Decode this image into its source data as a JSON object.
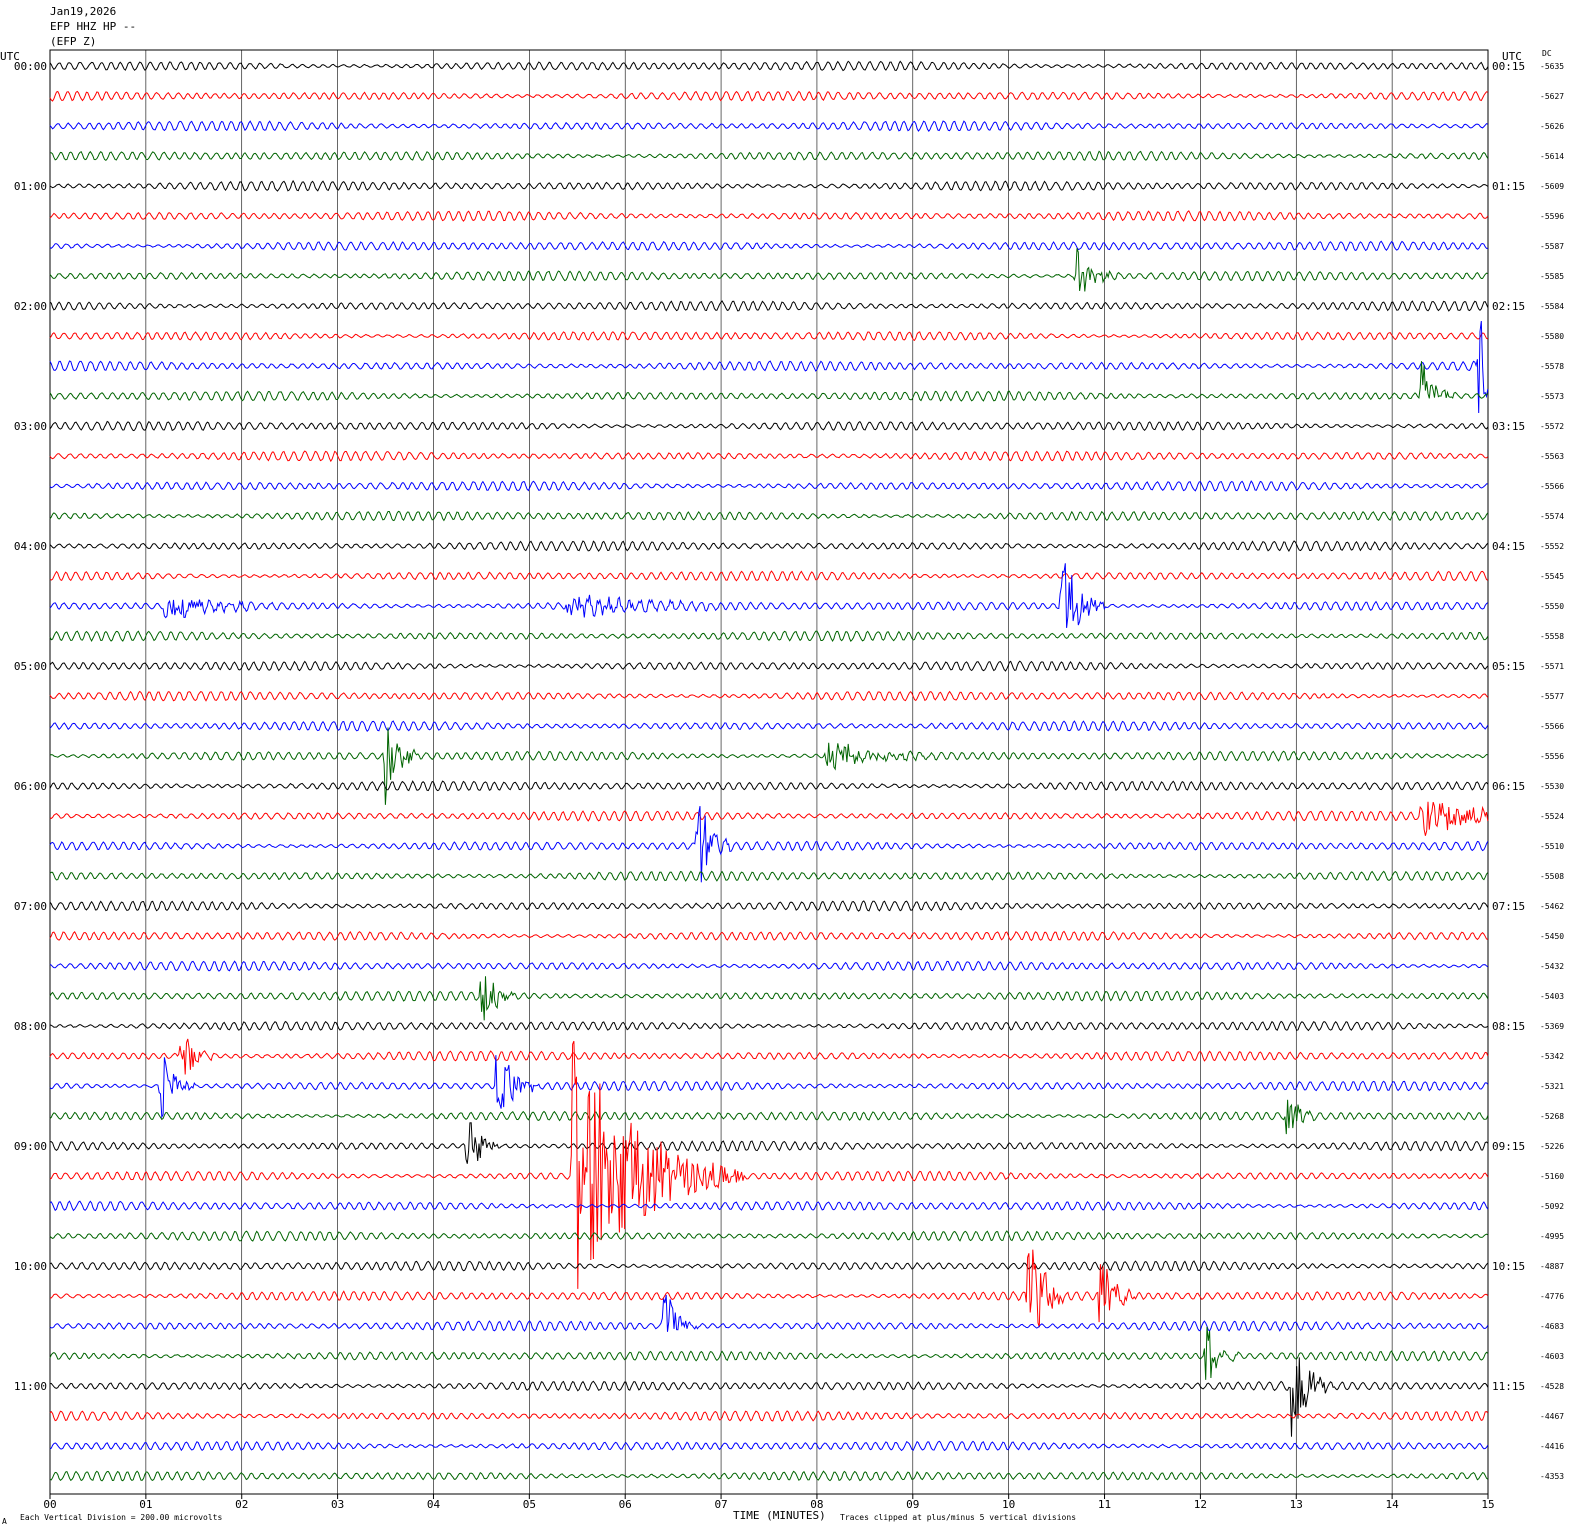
{
  "header": {
    "date": "Jan19,2026",
    "channel": "EFP HHZ HP --",
    "station": "(EFP Z)"
  },
  "axes": {
    "left_label": "UTC",
    "right_label": "UTC",
    "dc_label": "DC",
    "xlabel": "TIME (MINUTES)",
    "x_ticks": [
      "00",
      "01",
      "02",
      "03",
      "04",
      "05",
      "06",
      "07",
      "08",
      "09",
      "10",
      "11",
      "12",
      "13",
      "14",
      "15"
    ]
  },
  "footer": {
    "scale_note": "Each Vertical Division =  200.00 microvolts",
    "clip_note": "Traces clipped at plus/minus 5 vertical divisions",
    "corner_mark": "A"
  },
  "colors": {
    "trace_cycle": [
      "#000000",
      "#ff0000",
      "#0000ff",
      "#006400"
    ],
    "grid": "#000000",
    "background": "#ffffff"
  },
  "chart_data": {
    "type": "line",
    "title": "",
    "xlim": [
      0,
      15
    ],
    "minutes_per_row": 15,
    "row_count": 48,
    "grid_vertical": true,
    "left_time_labels": [
      "00:00",
      "",
      "",
      "",
      "01:00",
      "",
      "",
      "",
      "02:00",
      "",
      "",
      "",
      "03:00",
      "",
      "",
      "",
      "04:00",
      "",
      "",
      "",
      "05:00",
      "",
      "",
      "",
      "06:00",
      "",
      "",
      "",
      "07:00",
      "",
      "",
      "",
      "08:00",
      "",
      "",
      "",
      "09:00",
      "",
      "",
      "",
      "10:00",
      "",
      "",
      "",
      "11:00",
      "",
      "",
      ""
    ],
    "right_time_labels": [
      "00:15",
      "",
      "",
      "",
      "01:15",
      "",
      "",
      "",
      "02:15",
      "",
      "",
      "",
      "03:15",
      "",
      "",
      "",
      "04:15",
      "",
      "",
      "",
      "05:15",
      "",
      "",
      "",
      "06:15",
      "",
      "",
      "",
      "07:15",
      "",
      "",
      "",
      "08:15",
      "",
      "",
      "",
      "09:15",
      "",
      "",
      "",
      "10:15",
      "",
      "",
      "",
      "11:15",
      "",
      "",
      ""
    ],
    "dc_offsets": [
      "-5635",
      "-5627",
      "-5626",
      "-5614",
      "-5609",
      "-5596",
      "-5587",
      "-5585",
      "-5584",
      "-5580",
      "-5578",
      "-5573",
      "-5572",
      "-5563",
      "-5566",
      "-5574",
      "-5552",
      "-5545",
      "-5550",
      "-5558",
      "-5571",
      "-5577",
      "-5566",
      "-5556",
      "-5530",
      "-5524",
      "-5510",
      "-5508",
      "-5462",
      "-5450",
      "-5432",
      "-5403",
      "-5369",
      "-5342",
      "-5321",
      "-5268",
      "-5226",
      "-5160",
      "-5092",
      "-4995",
      "-4887",
      "-4776",
      "-4683",
      "-4603",
      "-4528",
      "-4467",
      "-4416",
      "-4353"
    ],
    "events": [
      {
        "row": 7,
        "minute": 10.7,
        "amp": 1.0,
        "dur": 0.15
      },
      {
        "row": 10,
        "minute": 14.9,
        "amp": 2.0,
        "dur": 0.15
      },
      {
        "row": 11,
        "minute": 14.3,
        "amp": 1.3,
        "dur": 0.12
      },
      {
        "row": 18,
        "minute": 1.2,
        "amp": 0.5,
        "dur": 0.4
      },
      {
        "row": 18,
        "minute": 5.4,
        "amp": 0.4,
        "dur": 0.6
      },
      {
        "row": 18,
        "minute": 10.55,
        "amp": 2.0,
        "dur": 0.15
      },
      {
        "row": 23,
        "minute": 3.5,
        "amp": 1.8,
        "dur": 0.12
      },
      {
        "row": 23,
        "minute": 8.1,
        "amp": 0.6,
        "dur": 0.4
      },
      {
        "row": 25,
        "minute": 14.3,
        "amp": 0.7,
        "dur": 0.6
      },
      {
        "row": 26,
        "minute": 6.75,
        "amp": 2.0,
        "dur": 0.12
      },
      {
        "row": 31,
        "minute": 4.5,
        "amp": 1.2,
        "dur": 0.12
      },
      {
        "row": 33,
        "minute": 1.35,
        "amp": 1.3,
        "dur": 0.12
      },
      {
        "row": 34,
        "minute": 1.15,
        "amp": 1.4,
        "dur": 0.12
      },
      {
        "row": 34,
        "minute": 4.65,
        "amp": 1.7,
        "dur": 0.15
      },
      {
        "row": 35,
        "minute": 12.9,
        "amp": 1.0,
        "dur": 0.1
      },
      {
        "row": 36,
        "minute": 4.35,
        "amp": 1.2,
        "dur": 0.12
      },
      {
        "row": 37,
        "minute": 5.45,
        "amp": 5.0,
        "dur": 0.6
      },
      {
        "row": 41,
        "minute": 10.2,
        "amp": 2.2,
        "dur": 0.15
      },
      {
        "row": 41,
        "minute": 10.95,
        "amp": 1.8,
        "dur": 0.12
      },
      {
        "row": 42,
        "minute": 6.4,
        "amp": 1.6,
        "dur": 0.12
      },
      {
        "row": 43,
        "minute": 12.05,
        "amp": 1.3,
        "dur": 0.12
      },
      {
        "row": 44,
        "minute": 12.95,
        "amp": 2.0,
        "dur": 0.15
      }
    ]
  }
}
